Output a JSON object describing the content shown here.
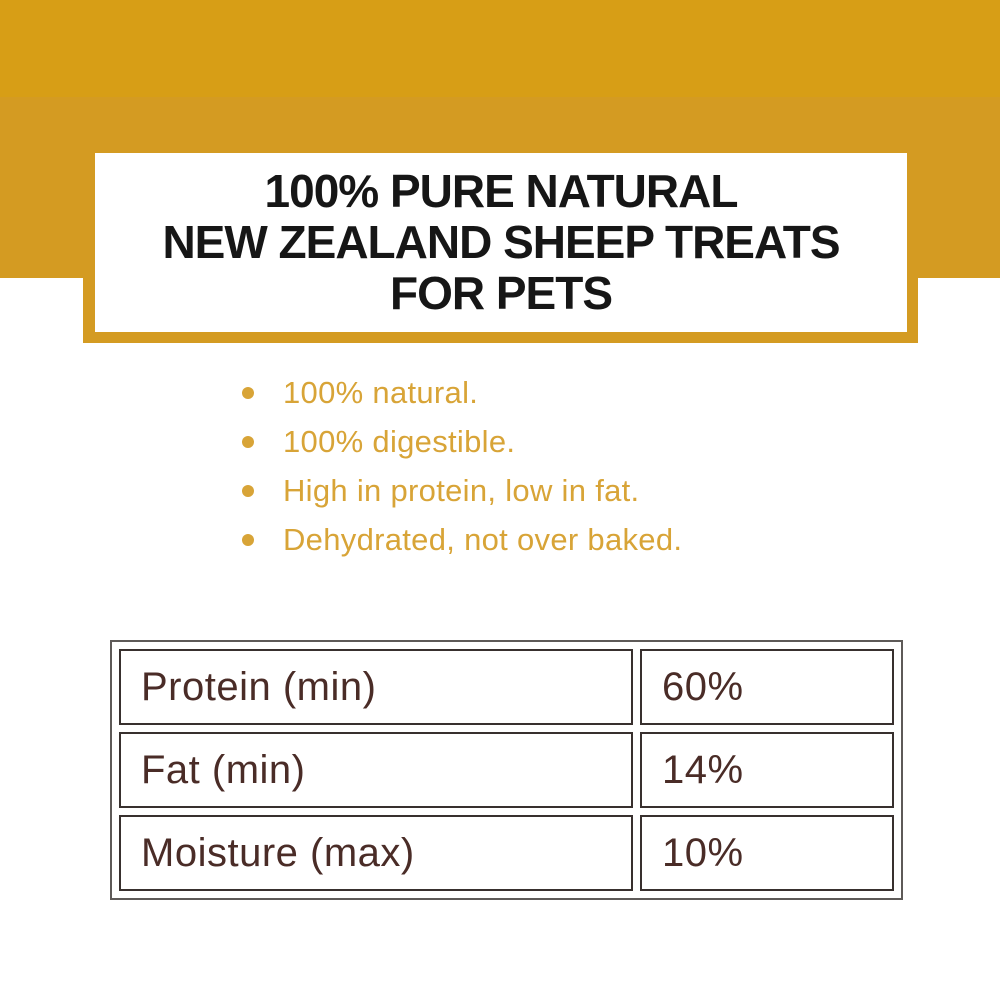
{
  "colors": {
    "band_gold": "#D49B22",
    "band_gold_top": "#D79E16",
    "bullet_gold": "#D8A437",
    "title_text": "#161616",
    "table_text_brown": "#4A2C27",
    "table_outer_border": "#5e5a58",
    "table_cell_border": "#38302e",
    "page_background": "#ffffff"
  },
  "header": {
    "title": {
      "line1": "100% PURE NATURAL",
      "line2": "NEW ZEALAND SHEEP TREATS",
      "line3": "FOR PETS"
    }
  },
  "bullets": {
    "items": [
      "100% natural.",
      "100% digestible.",
      "High in protein, low in fat.",
      "Dehydrated, not over baked."
    ]
  },
  "nutrition_table": {
    "rows": [
      {
        "label": "Protein (min)",
        "value": "60%"
      },
      {
        "label": "Fat (min)",
        "value": "14%"
      },
      {
        "label": "Moisture (max)",
        "value": "10%"
      }
    ]
  }
}
